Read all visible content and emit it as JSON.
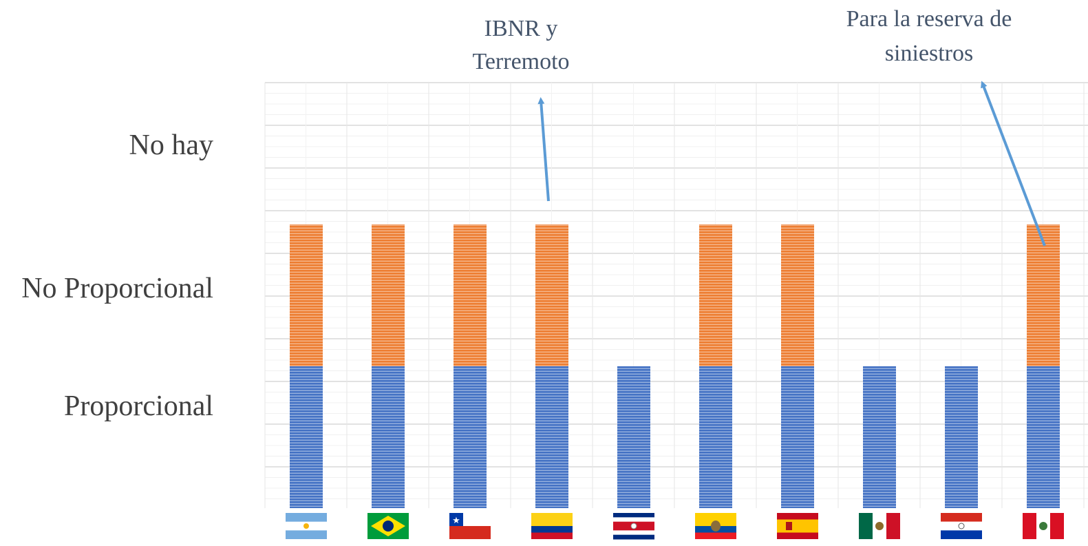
{
  "chart_data": {
    "type": "bar",
    "stacked": true,
    "y_levels": [
      "Proporcional",
      "No Proporcional",
      "No hay"
    ],
    "categories": [
      "Argentina",
      "Brasil",
      "Chile",
      "Colombia",
      "Costa Rica",
      "Ecuador",
      "España",
      "México",
      "Paraguay",
      "Perú"
    ],
    "category_icons": [
      "flag-argentina-icon",
      "flag-brazil-icon",
      "flag-chile-icon",
      "flag-colombia-icon",
      "flag-costa-rica-icon",
      "flag-ecuador-icon",
      "flag-spain-icon",
      "flag-mexico-icon",
      "flag-paraguay-icon",
      "flag-peru-icon"
    ],
    "series": [
      {
        "color": "#4472c4",
        "values": [
          1,
          1,
          1,
          1,
          1,
          1,
          1,
          1,
          1,
          1
        ]
      },
      {
        "color": "#ed7d31",
        "values": [
          1,
          1,
          1,
          1,
          0,
          1,
          1,
          0,
          0,
          1
        ]
      }
    ],
    "ylim": [
      0,
      3
    ],
    "grid": true,
    "legend": "none",
    "annotations": [
      {
        "lines": [
          "IBNR y",
          "Terremoto"
        ],
        "target_category": "Colombia"
      },
      {
        "lines": [
          "Para la reserva de",
          "siniestros"
        ],
        "target_category": "Perú"
      }
    ]
  }
}
